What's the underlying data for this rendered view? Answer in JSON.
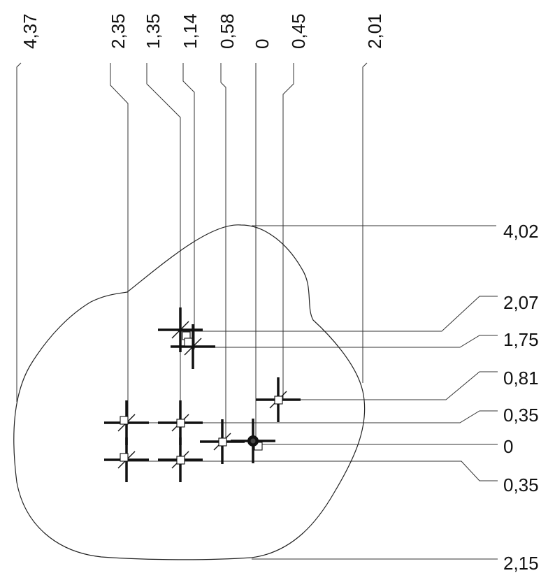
{
  "dimensions": {
    "top": [
      "4,37",
      "2,35",
      "1,35",
      "1,14",
      "0,58",
      "0",
      "0,45",
      "2,01"
    ],
    "right": [
      "4,02",
      "2,07",
      "1,75",
      "0,81",
      "0,35",
      "0",
      "0,35",
      "2,15"
    ]
  },
  "markers": {
    "points": [
      "cross-square",
      "cross-square",
      "cross-square",
      "cross-square",
      "cross-square",
      "cross-square",
      "cross-square",
      "cross-square",
      "origin-dot"
    ]
  }
}
